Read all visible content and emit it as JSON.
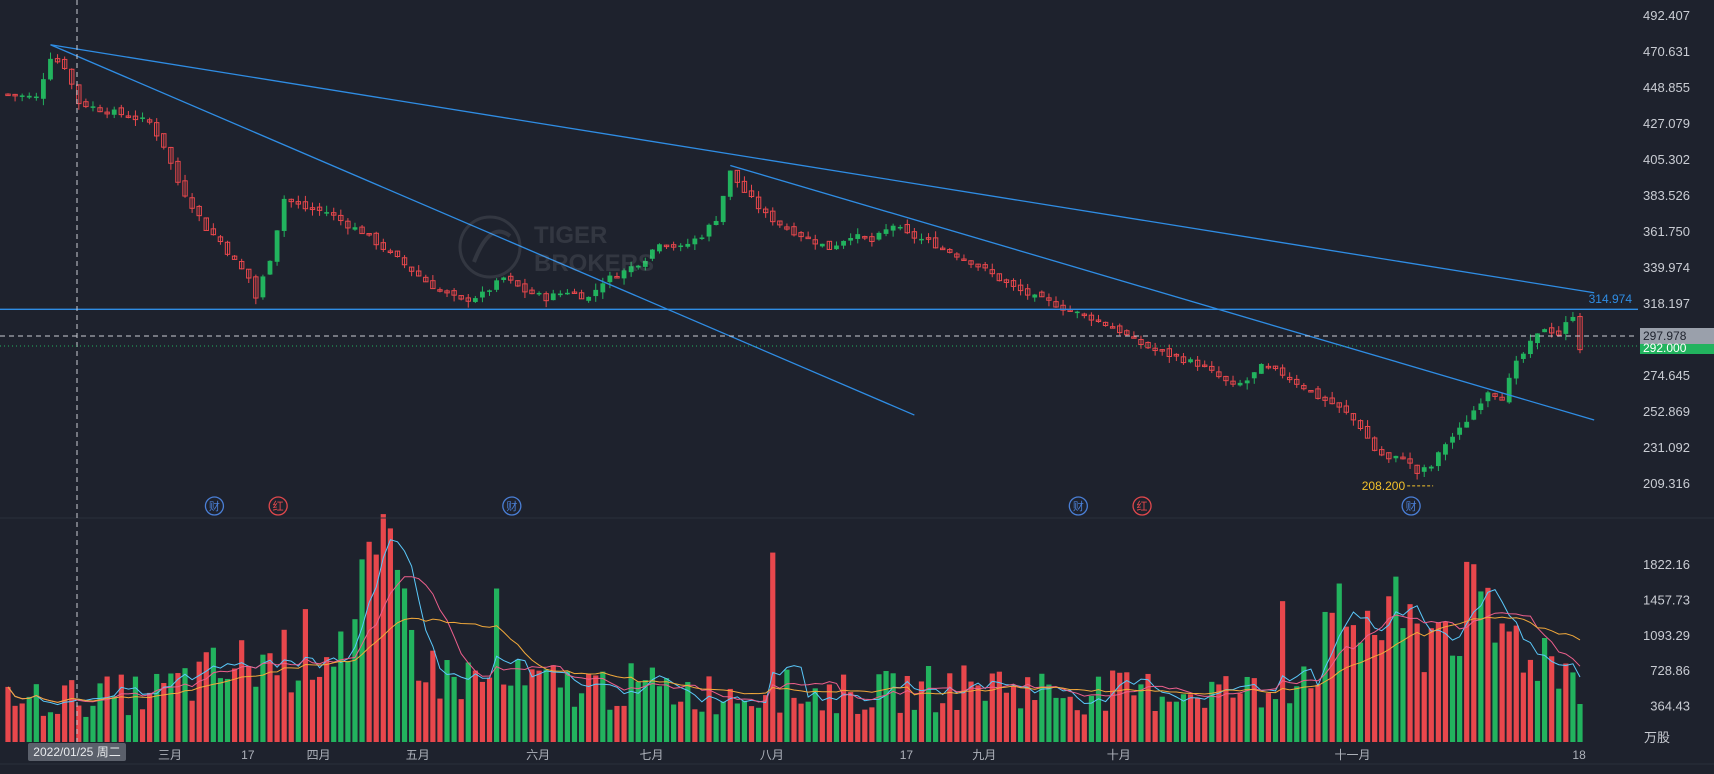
{
  "colors": {
    "background": "#1e222d",
    "up": "#22b35e",
    "down": "#e8474c",
    "trendline": "#2f8de4",
    "grid_text": "#c9ccd3",
    "low_label": "#f3c12b",
    "ma_blue": "#5ac8fa",
    "ma_pink": "#ec5f8c",
    "ma_orange": "#f2a93b",
    "current_tag": "#22b35e",
    "crosshair_tag": "#9aa0ab"
  },
  "price_axis": {
    "ticks": [
      "492.407",
      "470.631",
      "448.855",
      "427.079",
      "405.302",
      "383.526",
      "361.750",
      "339.974",
      "318.197",
      "274.645",
      "252.869",
      "231.092",
      "209.316"
    ]
  },
  "volume_axis": {
    "ticks": [
      "1822.16",
      "1457.73",
      "1093.29",
      "728.86",
      "364.43"
    ],
    "unit": "万股"
  },
  "time_axis": {
    "labels": [
      "三月",
      "17",
      "四月",
      "五月",
      "六月",
      "七月",
      "八月",
      "17",
      "九月",
      "十月",
      "十一月",
      "18"
    ],
    "crosshair_date": "2022/01/25 周二"
  },
  "price_tags": {
    "trendline_value": "314.974",
    "crosshair_price": "297.978",
    "current_price": "292.000",
    "low_label": "208.200"
  },
  "event_markers": [
    {
      "label": "财",
      "kind": "earnings"
    },
    {
      "label": "红",
      "kind": "dividend"
    },
    {
      "label": "财",
      "kind": "earnings"
    },
    {
      "label": "财",
      "kind": "earnings"
    },
    {
      "label": "红",
      "kind": "dividend"
    },
    {
      "label": "财",
      "kind": "earnings"
    }
  ],
  "watermark": "TIGER BROKERS",
  "chart_data": [
    {
      "type": "candlestick",
      "title": "",
      "y_axis_side": "right",
      "ylim": [
        195,
        500
      ],
      "grid": false,
      "legend": "none",
      "close_path": [
        [
          0,
          445
        ],
        [
          4,
          443
        ],
        [
          6,
          468
        ],
        [
          8,
          462
        ],
        [
          10,
          440
        ],
        [
          13,
          436
        ],
        [
          17,
          432
        ],
        [
          20,
          428
        ],
        [
          22,
          414
        ],
        [
          24,
          392
        ],
        [
          26,
          378
        ],
        [
          28,
          364
        ],
        [
          30,
          356
        ],
        [
          32,
          344
        ],
        [
          34,
          334
        ],
        [
          35,
          322
        ],
        [
          37,
          346
        ],
        [
          39,
          382
        ],
        [
          42,
          376
        ],
        [
          45,
          374
        ],
        [
          48,
          366
        ],
        [
          50,
          362
        ],
        [
          53,
          352
        ],
        [
          56,
          342
        ],
        [
          59,
          332
        ],
        [
          61,
          326
        ],
        [
          64,
          320
        ],
        [
          67,
          324
        ],
        [
          70,
          334
        ],
        [
          73,
          326
        ],
        [
          76,
          322
        ],
        [
          79,
          326
        ],
        [
          82,
          322
        ],
        [
          84,
          332
        ],
        [
          87,
          338
        ],
        [
          90,
          346
        ],
        [
          92,
          356
        ],
        [
          95,
          352
        ],
        [
          98,
          360
        ],
        [
          100,
          370
        ],
        [
          102,
          398
        ],
        [
          104,
          386
        ],
        [
          107,
          372
        ],
        [
          110,
          364
        ],
        [
          113,
          358
        ],
        [
          116,
          352
        ],
        [
          119,
          360
        ],
        [
          122,
          356
        ],
        [
          125,
          366
        ],
        [
          127,
          360
        ],
        [
          130,
          356
        ],
        [
          133,
          350
        ],
        [
          136,
          344
        ],
        [
          139,
          336
        ],
        [
          142,
          328
        ],
        [
          145,
          322
        ],
        [
          148,
          318
        ],
        [
          150,
          314
        ],
        [
          153,
          310
        ],
        [
          155,
          306
        ],
        [
          157,
          302
        ],
        [
          159,
          296
        ],
        [
          162,
          290
        ],
        [
          165,
          286
        ],
        [
          168,
          282
        ],
        [
          171,
          274
        ],
        [
          173,
          268
        ],
        [
          175,
          272
        ],
        [
          177,
          280
        ],
        [
          180,
          276
        ],
        [
          183,
          268
        ],
        [
          185,
          262
        ],
        [
          187,
          258
        ],
        [
          189,
          252
        ],
        [
          191,
          244
        ],
        [
          193,
          230
        ],
        [
          195,
          224
        ],
        [
          197,
          226
        ],
        [
          199,
          216
        ],
        [
          201,
          220
        ],
        [
          203,
          234
        ],
        [
          205,
          242
        ],
        [
          207,
          254
        ],
        [
          209,
          266
        ],
        [
          211,
          262
        ],
        [
          213,
          282
        ],
        [
          215,
          294
        ],
        [
          217,
          304
        ],
        [
          219,
          300
        ],
        [
          221,
          312
        ],
        [
          222,
          292
        ]
      ],
      "low": 208.2,
      "trendlines": [
        {
          "from": [
            6,
            475
          ],
          "to": [
            128,
            251
          ]
        },
        {
          "from": [
            6,
            475
          ],
          "to": [
            224,
            325
          ]
        },
        {
          "from": [
            102,
            402
          ],
          "to": [
            224,
            248
          ]
        },
        {
          "level": 315
        }
      ]
    },
    {
      "type": "bar",
      "title": "",
      "ylabel": "万股",
      "ylim": [
        0,
        2000
      ],
      "series": [],
      "volume_path": [
        [
          0,
          420
        ],
        [
          20,
          500
        ],
        [
          30,
          720
        ],
        [
          40,
          900
        ],
        [
          50,
          1200
        ],
        [
          52,
          1700
        ],
        [
          55,
          1500
        ],
        [
          60,
          700
        ],
        [
          70,
          600
        ],
        [
          90,
          560
        ],
        [
          100,
          500
        ],
        [
          110,
          520
        ],
        [
          120,
          480
        ],
        [
          130,
          550
        ],
        [
          140,
          600
        ],
        [
          150,
          500
        ],
        [
          160,
          520
        ],
        [
          170,
          540
        ],
        [
          180,
          500
        ],
        [
          185,
          900
        ],
        [
          190,
          1300
        ],
        [
          195,
          1200
        ],
        [
          200,
          1100
        ],
        [
          205,
          1350
        ],
        [
          210,
          1150
        ],
        [
          215,
          1000
        ],
        [
          222,
          650
        ]
      ],
      "spikes": [
        [
          50,
          1880
        ],
        [
          69,
          1580
        ],
        [
          108,
          1950
        ],
        [
          180,
          1450
        ],
        [
          195,
          1500
        ],
        [
          208,
          1550
        ]
      ]
    }
  ]
}
